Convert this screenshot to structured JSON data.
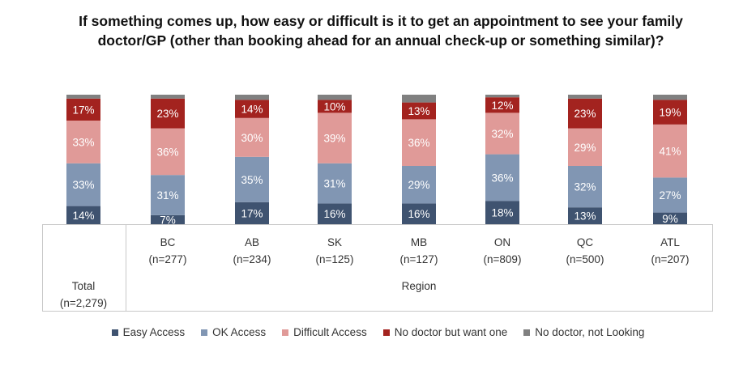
{
  "chart_data": {
    "type": "bar",
    "stacked": true,
    "title": "If something comes up, how easy or difficult is it to get an appointment to see your family doctor/GP (other than booking ahead for an annual check-up or something similar)?",
    "categories": [
      {
        "label": "Total",
        "n": "(n=2,279)"
      },
      {
        "label": "BC",
        "n": "(n=277)"
      },
      {
        "label": "AB",
        "n": "(n=234)"
      },
      {
        "label": "SK",
        "n": "(n=125)"
      },
      {
        "label": "MB",
        "n": "(n=127)"
      },
      {
        "label": "ON",
        "n": "(n=809)"
      },
      {
        "label": "QC",
        "n": "(n=500)"
      },
      {
        "label": "ATL",
        "n": "(n=207)"
      }
    ],
    "group_label": "Region",
    "series": [
      {
        "name": "Easy Access",
        "color": "#3f5370",
        "values": [
          14,
          7,
          17,
          16,
          16,
          18,
          13,
          9
        ]
      },
      {
        "name": "OK Access",
        "color": "#8196b3",
        "values": [
          33,
          31,
          35,
          31,
          29,
          36,
          32,
          27
        ]
      },
      {
        "name": "Difficult Access",
        "color": "#e09a98",
        "values": [
          33,
          36,
          30,
          39,
          36,
          32,
          29,
          41
        ]
      },
      {
        "name": "No doctor but want one",
        "color": "#a3231f",
        "values": [
          17,
          23,
          14,
          10,
          13,
          12,
          23,
          19
        ]
      },
      {
        "name": "No doctor, not Looking",
        "color": "#808080",
        "values": [
          3,
          3,
          4,
          4,
          6,
          2,
          3,
          4
        ],
        "labels_shown": false
      }
    ],
    "ylim": [
      0,
      100
    ],
    "legend_position": "bottom",
    "grid": false
  }
}
